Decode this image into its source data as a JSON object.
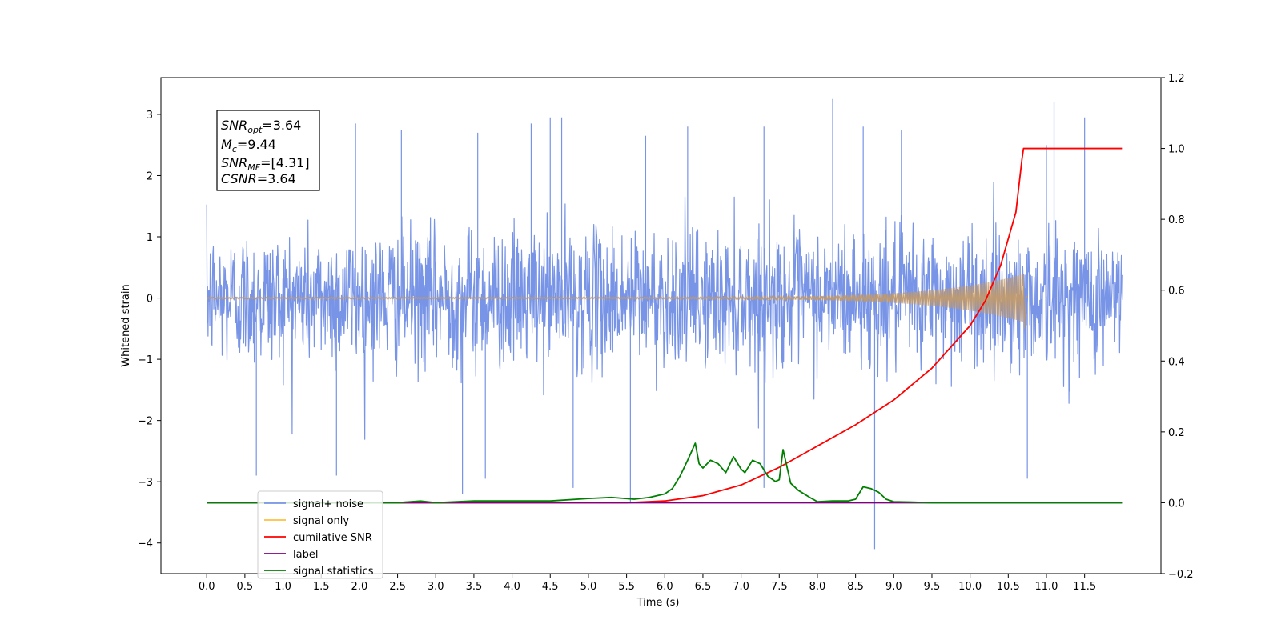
{
  "chart_data": {
    "type": "line",
    "xlabel": "Time (s)",
    "ylabel": "Whitened strain",
    "xlim": [
      -0.6,
      12.5
    ],
    "ylim": [
      -4.5,
      3.6
    ],
    "y2lim": [
      -0.2,
      1.2
    ],
    "x_ticks": [
      0.0,
      0.5,
      1.0,
      1.5,
      2.0,
      2.5,
      3.0,
      3.5,
      4.0,
      4.5,
      5.0,
      5.5,
      6.0,
      6.5,
      7.0,
      7.5,
      8.0,
      8.5,
      9.0,
      9.5,
      10.0,
      10.5,
      11.0,
      11.5
    ],
    "x_tick_labels": [
      "0.0",
      "0.5",
      "1.0",
      "1.5",
      "2.0",
      "2.5",
      "3.0",
      "3.5",
      "4.0",
      "4.5",
      "5.0",
      "5.5",
      "6.0",
      "6.5",
      "7.0",
      "7.5",
      "8.0",
      "8.5",
      "9.0",
      "9.5",
      "10.0",
      "10.5",
      "11.0",
      "11.5"
    ],
    "y_ticks": [
      3,
      2,
      1,
      0,
      -1,
      -2,
      -3,
      -4
    ],
    "y_tick_labels": [
      "3",
      "2",
      "1",
      "0",
      "−1",
      "−2",
      "−3",
      "−4"
    ],
    "y2_ticks": [
      1.2,
      1.0,
      0.8,
      0.6,
      0.4,
      0.2,
      0.0,
      -0.2
    ],
    "y2_tick_labels": [
      "1.2",
      "1.0",
      "0.8",
      "0.6",
      "0.4",
      "0.2",
      "0.0",
      "−0.2"
    ],
    "grid": false,
    "legend_position": "lower-left",
    "annotation_box": {
      "lines": [
        {
          "name": "SNR",
          "sub": "opt",
          "value": "=3.64"
        },
        {
          "name": "M",
          "sub": "c",
          "value": "=9.44"
        },
        {
          "name": "SNR",
          "sub": "MF",
          "value": "=[4.31]"
        },
        {
          "name": "CSNR",
          "sub": "",
          "value": "=3.64"
        }
      ]
    },
    "series": [
      {
        "name": "signal+ noise",
        "axis": "left",
        "color": "#7894e6",
        "description_values": {
          "x_range": [
            0.0,
            12.0
          ],
          "envelope_upper": 1.3,
          "envelope_lower": -1.3,
          "peaks": [
            {
              "x": 1.95,
              "y": 2.85
            },
            {
              "x": 2.55,
              "y": 2.75
            },
            {
              "x": 3.55,
              "y": 2.7
            },
            {
              "x": 4.25,
              "y": 2.85
            },
            {
              "x": 4.5,
              "y": 2.95
            },
            {
              "x": 4.65,
              "y": 2.95
            },
            {
              "x": 5.75,
              "y": 2.65
            },
            {
              "x": 6.3,
              "y": 2.8
            },
            {
              "x": 7.3,
              "y": 2.8
            },
            {
              "x": 8.2,
              "y": 3.25
            },
            {
              "x": 8.6,
              "y": 2.8
            },
            {
              "x": 9.1,
              "y": 2.75
            },
            {
              "x": 11.0,
              "y": 2.5
            },
            {
              "x": 11.1,
              "y": 3.2
            },
            {
              "x": 11.5,
              "y": 2.95
            }
          ],
          "troughs": [
            {
              "x": 0.65,
              "y": -2.9
            },
            {
              "x": 1.7,
              "y": -2.9
            },
            {
              "x": 3.35,
              "y": -3.2
            },
            {
              "x": 3.65,
              "y": -2.95
            },
            {
              "x": 4.8,
              "y": -3.1
            },
            {
              "x": 5.55,
              "y": -3.35
            },
            {
              "x": 7.3,
              "y": -3.1
            },
            {
              "x": 8.75,
              "y": -4.1
            },
            {
              "x": 10.75,
              "y": -2.95
            }
          ]
        }
      },
      {
        "name": "signal only",
        "axis": "left",
        "color": "#ffbf40",
        "chirp": {
          "start": 0.0,
          "end": 12.0,
          "merger": 10.7,
          "peak_amplitude": 0.38,
          "ringdown_min": -0.5
        }
      },
      {
        "name": "cumilative SNR",
        "axis": "right",
        "color": "#ff0000",
        "x": [
          0.0,
          5.5,
          6.0,
          6.5,
          7.0,
          7.5,
          8.0,
          8.5,
          9.0,
          9.5,
          10.0,
          10.2,
          10.4,
          10.6,
          10.68,
          10.7,
          12.0
        ],
        "y": [
          0.0,
          0.0,
          0.005,
          0.02,
          0.05,
          0.1,
          0.16,
          0.22,
          0.29,
          0.38,
          0.5,
          0.57,
          0.67,
          0.82,
          0.97,
          1.0,
          1.0
        ]
      },
      {
        "name": "label",
        "axis": "right",
        "color": "#800080",
        "x": [
          0.0,
          12.0
        ],
        "y": [
          0.0,
          0.0
        ]
      },
      {
        "name": "signal statistics",
        "axis": "right",
        "color": "#008000",
        "x": [
          0.0,
          2.5,
          2.8,
          3.0,
          3.5,
          4.0,
          4.5,
          5.0,
          5.3,
          5.6,
          5.8,
          6.0,
          6.1,
          6.2,
          6.3,
          6.4,
          6.45,
          6.5,
          6.6,
          6.7,
          6.8,
          6.9,
          7.0,
          7.05,
          7.15,
          7.25,
          7.35,
          7.45,
          7.5,
          7.55,
          7.65,
          7.75,
          7.9,
          8.0,
          8.2,
          8.4,
          8.5,
          8.6,
          8.7,
          8.8,
          8.9,
          9.0,
          9.2,
          9.5,
          10.0,
          12.0
        ],
        "y": [
          0.0,
          0.0,
          0.005,
          0.0,
          0.005,
          0.005,
          0.005,
          0.012,
          0.015,
          0.01,
          0.015,
          0.025,
          0.04,
          0.075,
          0.12,
          0.168,
          0.11,
          0.098,
          0.12,
          0.11,
          0.085,
          0.13,
          0.095,
          0.085,
          0.12,
          0.11,
          0.075,
          0.06,
          0.065,
          0.15,
          0.055,
          0.035,
          0.015,
          0.003,
          0.005,
          0.005,
          0.01,
          0.045,
          0.04,
          0.03,
          0.01,
          0.003,
          0.002,
          0.0,
          0.0,
          0.0
        ]
      }
    ]
  }
}
